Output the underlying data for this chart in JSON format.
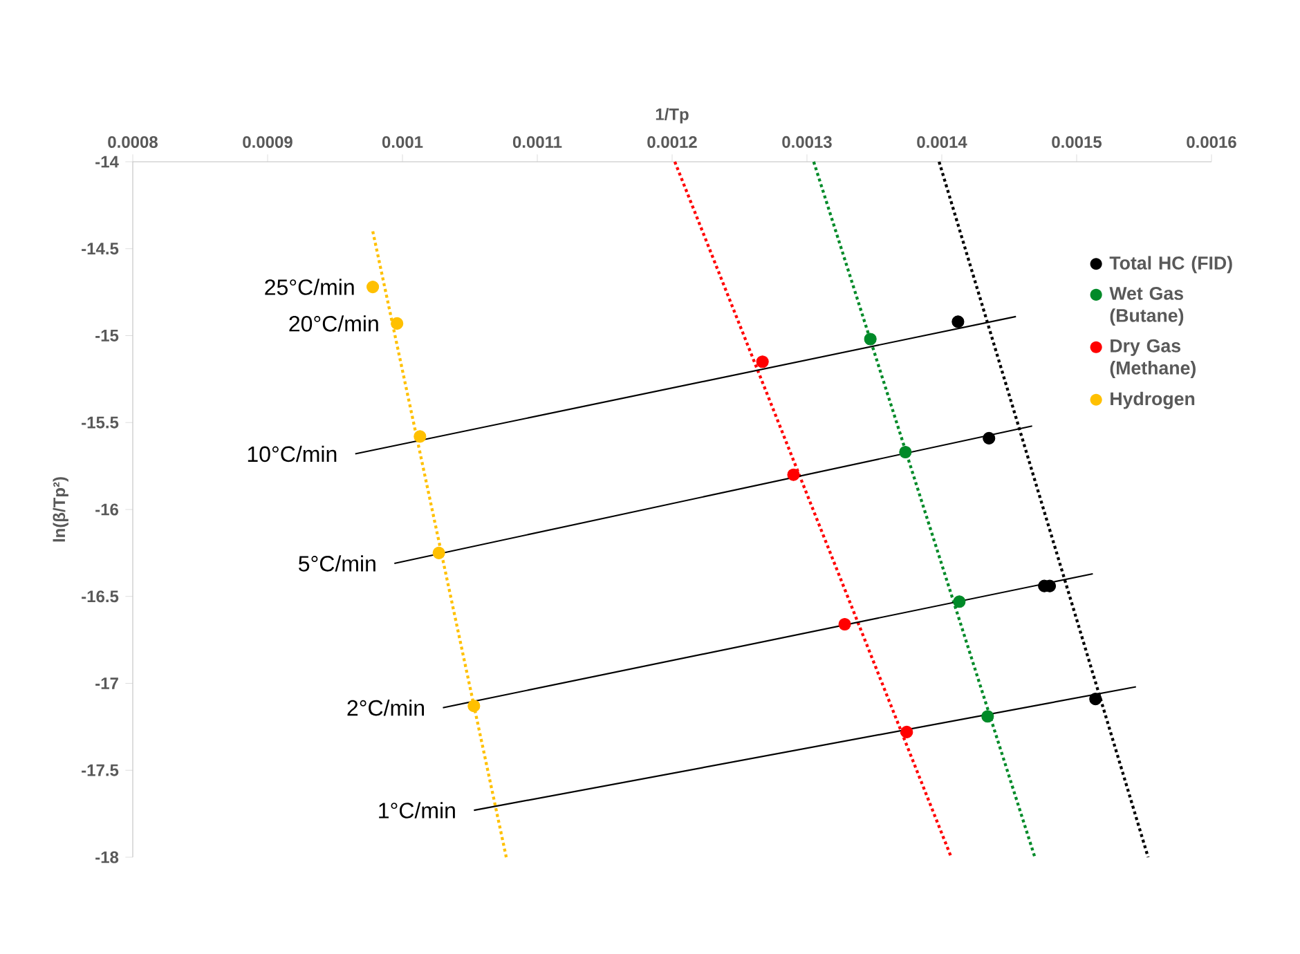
{
  "chart_data": {
    "type": "scatter",
    "xlabel": "1/Tp",
    "ylabel": "ln(β/Tp²)",
    "xlim": [
      0.0008,
      0.0016
    ],
    "ylim": [
      -18,
      -14
    ],
    "xticks": [
      0.0008,
      0.0009,
      0.001,
      0.0011,
      0.0012,
      0.0013,
      0.0014,
      0.0015,
      0.0016
    ],
    "yticks": [
      -18,
      -17.5,
      -17,
      -16.5,
      -16,
      -15.5,
      -15,
      -14.5,
      -14
    ],
    "grid": false,
    "legend": "top right",
    "series": [
      {
        "name": "Total HC (FID)",
        "type": "scatter",
        "marker": "circle",
        "color": "#000000",
        "x": [
          0.001412,
          0.001435,
          0.001476,
          0.00148,
          0.001514
        ],
        "values": [
          -14.92,
          -15.59,
          -16.44,
          -16.44,
          -17.09
        ]
      },
      {
        "name": "Wet Gas (Butane)",
        "type": "scatter",
        "marker": "circle",
        "color": "#008a28",
        "x": [
          0.001347,
          0.001373,
          0.001413,
          0.001434
        ],
        "values": [
          -15.02,
          -15.67,
          -16.53,
          -17.19
        ]
      },
      {
        "name": "Dry Gas (Methane)",
        "type": "scatter",
        "marker": "circle",
        "color": "#ff0000",
        "x": [
          0.001267,
          0.00129,
          0.001328,
          0.001374
        ],
        "values": [
          -15.15,
          -15.8,
          -16.66,
          -17.28
        ]
      },
      {
        "name": "Hydrogen",
        "type": "scatter",
        "marker": "circle",
        "color": "#ffc000",
        "x": [
          0.000978,
          0.000996,
          0.001013,
          0.001027,
          0.001053
        ],
        "values": [
          -14.72,
          -14.93,
          -15.58,
          -16.25,
          -17.13
        ]
      },
      {
        "type": "line",
        "line_style": "dotted",
        "color": "#000000",
        "x": [
          0.001398,
          0.001553
        ],
        "values": [
          -14,
          -18
        ]
      },
      {
        "type": "line",
        "line_style": "dotted",
        "color": "#008a28",
        "x": [
          0.001305,
          0.001469
        ],
        "values": [
          -14,
          -18
        ]
      },
      {
        "type": "line",
        "line_style": "dotted",
        "color": "#ff0000",
        "x": [
          0.001202,
          0.001407
        ],
        "values": [
          -14,
          -18
        ]
      },
      {
        "type": "line",
        "line_style": "dotted",
        "color": "#ffc000",
        "x": [
          0.000978,
          0.001077
        ],
        "values": [
          -14.4,
          -18
        ]
      },
      {
        "type": "line",
        "line_style": "solid",
        "color": "#000000",
        "x": [
          0.000965,
          0.001455
        ],
        "values": [
          -15.68,
          -14.89
        ]
      },
      {
        "type": "line",
        "line_style": "solid",
        "color": "#000000",
        "x": [
          0.000994,
          0.001467
        ],
        "values": [
          -16.31,
          -15.52
        ]
      },
      {
        "type": "line",
        "line_style": "solid",
        "color": "#000000",
        "x": [
          0.00103,
          0.001512
        ],
        "values": [
          -17.14,
          -16.37
        ]
      },
      {
        "type": "line",
        "line_style": "solid",
        "color": "#000000",
        "x": [
          0.001053,
          0.001544
        ],
        "values": [
          -17.73,
          -17.02
        ]
      }
    ],
    "annotations": [
      {
        "text": "25°C/min",
        "x": 0.000978,
        "y": -14.72
      },
      {
        "text": "20°C/min",
        "x": 0.000996,
        "y": -14.93
      },
      {
        "text": "10°C/min",
        "x": 0.000965,
        "y": -15.68
      },
      {
        "text": "5°C/min",
        "x": 0.000994,
        "y": -16.31
      },
      {
        "text": "2°C/min",
        "x": 0.00103,
        "y": -17.14
      },
      {
        "text": "1°C/min",
        "x": 0.001053,
        "y": -17.73
      }
    ]
  }
}
